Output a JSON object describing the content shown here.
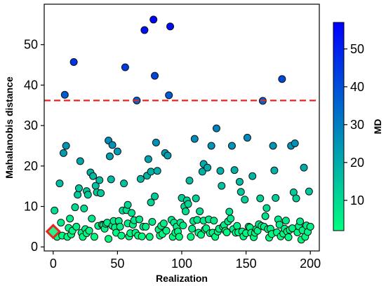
{
  "chart_data": {
    "type": "scatter",
    "xlabel": "Realization",
    "ylabel": "Mahalanobis distance",
    "xlim": [
      -7,
      207
    ],
    "ylim": [
      -1,
      60
    ],
    "xticks": [
      0,
      50,
      100,
      150,
      200
    ],
    "yticks": [
      0,
      10,
      20,
      30,
      40,
      50
    ],
    "grid": false,
    "threshold": {
      "y": 36.2,
      "style": "dashed",
      "color": "#e8251c"
    },
    "highlight": {
      "x": 0,
      "y": 3.8,
      "marker": "diamond",
      "edge_color": "#e8251c",
      "face_color": "#2ef08a"
    },
    "colorbar": {
      "label": "MD",
      "range": [
        2,
        57
      ],
      "ticks": [
        10,
        20,
        30,
        40,
        50
      ],
      "colormap": "winter_r",
      "color_low": "#00ff80",
      "color_high": "#0000ff",
      "placement": "right"
    },
    "points": [
      [
        1,
        9.0
      ],
      [
        3,
        2.5
      ],
      [
        5,
        15.7
      ],
      [
        6,
        6.0
      ],
      [
        7,
        2.8
      ],
      [
        8,
        23.2
      ],
      [
        9,
        37.6
      ],
      [
        10,
        25.0
      ],
      [
        11,
        2.5
      ],
      [
        12,
        4.7
      ],
      [
        13,
        7.0
      ],
      [
        14,
        3.1
      ],
      [
        15,
        4.0
      ],
      [
        16,
        45.7
      ],
      [
        17,
        9.8
      ],
      [
        18,
        5.0
      ],
      [
        19,
        12.9
      ],
      [
        20,
        14.5
      ],
      [
        21,
        21.2
      ],
      [
        22,
        3.5
      ],
      [
        23,
        2.5
      ],
      [
        24,
        9.5
      ],
      [
        25,
        4.4
      ],
      [
        26,
        3.4
      ],
      [
        26,
        13.8
      ],
      [
        27,
        12.9
      ],
      [
        28,
        4.0
      ],
      [
        29,
        18.4
      ],
      [
        30,
        7.0
      ],
      [
        31,
        17.5
      ],
      [
        32,
        2.5
      ],
      [
        33,
        15.1
      ],
      [
        34,
        13.5
      ],
      [
        35,
        5.2
      ],
      [
        36,
        16.5
      ],
      [
        37,
        13.3
      ],
      [
        38,
        5.5
      ],
      [
        39,
        5.4
      ],
      [
        40,
        4.5
      ],
      [
        41,
        5.7
      ],
      [
        42,
        6.0
      ],
      [
        43,
        2.0
      ],
      [
        43,
        26.3
      ],
      [
        44,
        22.4
      ],
      [
        45,
        16.7
      ],
      [
        46,
        25.2
      ],
      [
        46,
        5.2
      ],
      [
        47,
        6.4
      ],
      [
        48,
        4.8
      ],
      [
        49,
        3.5
      ],
      [
        50,
        23.6
      ],
      [
        51,
        6.4
      ],
      [
        52,
        5.0
      ],
      [
        53,
        2.8
      ],
      [
        54,
        9.0
      ],
      [
        55,
        15.7
      ],
      [
        56,
        44.4
      ],
      [
        57,
        9.1
      ],
      [
        58,
        10.4
      ],
      [
        58,
        5.8
      ],
      [
        59,
        2.6
      ],
      [
        60,
        3.4
      ],
      [
        61,
        8.4
      ],
      [
        62,
        5.5
      ],
      [
        63,
        6.6
      ],
      [
        64,
        3.5
      ],
      [
        65,
        36.2
      ],
      [
        66,
        2.8
      ],
      [
        67,
        6.8
      ],
      [
        68,
        16.8
      ],
      [
        69,
        2.6
      ],
      [
        70,
        5.0
      ],
      [
        71,
        53.6
      ],
      [
        72,
        5.0
      ],
      [
        73,
        17.6
      ],
      [
        74,
        21.7
      ],
      [
        75,
        2.5
      ],
      [
        76,
        11.0
      ],
      [
        76,
        18.6
      ],
      [
        77,
        6.2
      ],
      [
        78,
        56.2
      ],
      [
        79,
        12.5
      ],
      [
        79,
        42.3
      ],
      [
        80,
        25.8
      ],
      [
        81,
        18.8
      ],
      [
        82,
        4.3
      ],
      [
        83,
        2.8
      ],
      [
        84,
        5.2
      ],
      [
        85,
        3.2
      ],
      [
        86,
        5.8
      ],
      [
        87,
        23.2
      ],
      [
        88,
        4.0
      ],
      [
        89,
        22.6
      ],
      [
        90,
        37.5
      ],
      [
        91,
        54.5
      ],
      [
        92,
        6.7
      ],
      [
        93,
        2.5
      ],
      [
        94,
        6.0
      ],
      [
        95,
        3.5
      ],
      [
        96,
        5.0
      ],
      [
        97,
        3.8
      ],
      [
        98,
        2.5
      ],
      [
        99,
        6.0
      ],
      [
        100,
        12.1
      ],
      [
        101,
        5.3
      ],
      [
        102,
        10.0
      ],
      [
        103,
        8.8
      ],
      [
        104,
        11.5
      ],
      [
        105,
        10.6
      ],
      [
        106,
        16.4
      ],
      [
        107,
        2.5
      ],
      [
        108,
        4.5
      ],
      [
        109,
        6.4
      ],
      [
        110,
        26.7
      ],
      [
        111,
        12.0
      ],
      [
        112,
        6.7
      ],
      [
        113,
        3.5
      ],
      [
        114,
        8.8
      ],
      [
        115,
        3.0
      ],
      [
        116,
        18.6
      ],
      [
        117,
        6.5
      ],
      [
        117,
        20.5
      ],
      [
        118,
        4.3
      ],
      [
        119,
        4.6
      ],
      [
        120,
        19.6
      ],
      [
        121,
        6.8
      ],
      [
        122,
        3.4
      ],
      [
        123,
        25.0
      ],
      [
        124,
        3.5
      ],
      [
        125,
        6.5
      ],
      [
        126,
        2.5
      ],
      [
        127,
        29.3
      ],
      [
        128,
        3.8
      ],
      [
        129,
        4.5
      ],
      [
        130,
        18.8
      ],
      [
        131,
        15.1
      ],
      [
        132,
        5.0
      ],
      [
        133,
        5.4
      ],
      [
        134,
        4.0
      ],
      [
        135,
        3.6
      ],
      [
        136,
        6.3
      ],
      [
        137,
        8.7
      ],
      [
        138,
        7.0
      ],
      [
        139,
        25.0
      ],
      [
        140,
        4.4
      ],
      [
        141,
        19.0
      ],
      [
        142,
        3.5
      ],
      [
        143,
        5.2
      ],
      [
        144,
        3.6
      ],
      [
        145,
        16.1
      ],
      [
        146,
        13.6
      ],
      [
        147,
        3.8
      ],
      [
        148,
        2.6
      ],
      [
        149,
        11.7
      ],
      [
        150,
        3.4
      ],
      [
        151,
        27.0
      ],
      [
        152,
        5.0
      ],
      [
        153,
        4.8
      ],
      [
        154,
        3.5
      ],
      [
        155,
        17.5
      ],
      [
        156,
        2.4
      ],
      [
        157,
        3.5
      ],
      [
        158,
        4.4
      ],
      [
        159,
        4.0
      ],
      [
        160,
        5.6
      ],
      [
        161,
        12.0
      ],
      [
        162,
        5.2
      ],
      [
        163,
        36.1
      ],
      [
        164,
        5.0
      ],
      [
        165,
        7.6
      ],
      [
        166,
        9.6
      ],
      [
        167,
        4.4
      ],
      [
        168,
        2.3
      ],
      [
        169,
        4.5
      ],
      [
        170,
        3.2
      ],
      [
        171,
        25.0
      ],
      [
        172,
        18.9
      ],
      [
        173,
        12.1
      ],
      [
        174,
        3.6
      ],
      [
        175,
        6.8
      ],
      [
        176,
        5.5
      ],
      [
        177,
        2.6
      ],
      [
        178,
        41.5
      ],
      [
        179,
        3.3
      ],
      [
        180,
        4.5
      ],
      [
        181,
        6.5
      ],
      [
        182,
        3.8
      ],
      [
        183,
        2.4
      ],
      [
        184,
        4.2
      ],
      [
        185,
        25.0
      ],
      [
        186,
        4.6
      ],
      [
        187,
        13.5
      ],
      [
        188,
        25.6
      ],
      [
        189,
        12.0
      ],
      [
        190,
        3.6
      ],
      [
        191,
        5.1
      ],
      [
        192,
        6.3
      ],
      [
        193,
        1.8
      ],
      [
        194,
        4.1
      ],
      [
        195,
        19.6
      ],
      [
        196,
        2.5
      ],
      [
        197,
        5.3
      ],
      [
        198,
        3.7
      ],
      [
        199,
        13.7
      ],
      [
        200,
        5.0
      ]
    ]
  }
}
